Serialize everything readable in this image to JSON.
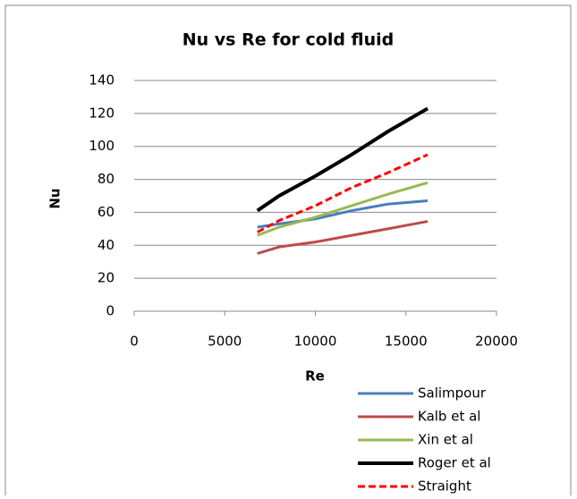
{
  "chart_data": {
    "type": "line",
    "title": "Nu vs Re for cold fluid",
    "x_label": "Re",
    "y_label": "Nu",
    "x": [
      6800,
      8000,
      10000,
      12000,
      14000,
      16200
    ],
    "series": [
      {
        "name": "Salimpour",
        "color": "#4a7ebb",
        "dash": false,
        "values": [
          51,
          53,
          56,
          61,
          65,
          67
        ]
      },
      {
        "name": "Kalb et al",
        "color": "#be4b48",
        "dash": false,
        "values": [
          35,
          39,
          42,
          46,
          50,
          54.5
        ]
      },
      {
        "name": "Xin et al",
        "color": "#98b954",
        "dash": false,
        "values": [
          46,
          51,
          57,
          64,
          71,
          78
        ]
      },
      {
        "name": "Roger et al",
        "color": "#000000",
        "dash": false,
        "values": [
          61,
          70,
          82,
          95,
          109,
          123
        ]
      },
      {
        "name": "Straight",
        "color": "#ff0000",
        "dash": true,
        "values": [
          48,
          55,
          64,
          75,
          84,
          95
        ]
      }
    ],
    "xlim": [
      0,
      20000
    ],
    "xticks": [
      0,
      5000,
      10000,
      15000,
      20000
    ],
    "ylim": [
      0,
      140
    ],
    "yticks": [
      0,
      20,
      40,
      60,
      80,
      100,
      120,
      140
    ],
    "grid": true,
    "legend": "bottom-right"
  }
}
